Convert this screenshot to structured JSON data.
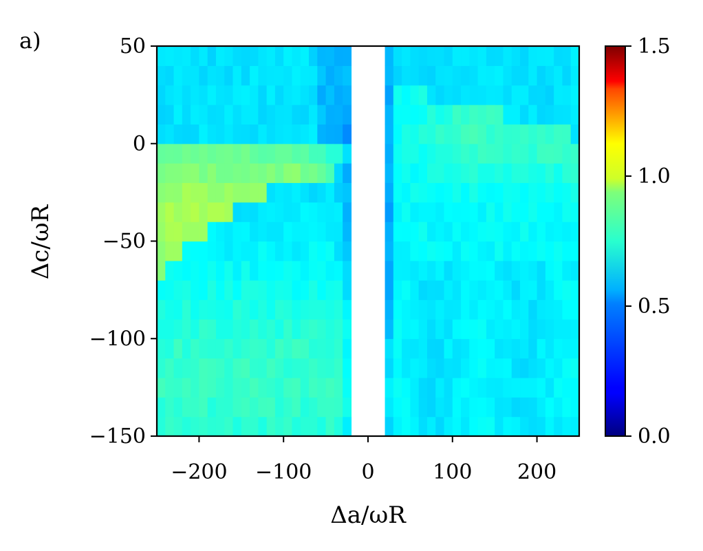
{
  "panel_label": "a)",
  "chart_data": {
    "type": "heatmap",
    "title": "",
    "xlabel": "Δa/ωR",
    "ylabel": "Δc/ωR",
    "xlim": [
      -250,
      250
    ],
    "ylim": [
      -150,
      50
    ],
    "xticks": [
      -200,
      -100,
      0,
      100,
      200
    ],
    "xtick_labels": [
      "−200",
      "−100",
      "0",
      "100",
      "200"
    ],
    "yticks": [
      -150,
      -100,
      -50,
      0,
      50
    ],
    "ytick_labels": [
      "−150",
      "−100",
      "−50",
      "0",
      "50"
    ],
    "colorbar": {
      "colormap": "jet",
      "range": [
        0.0,
        1.5
      ],
      "ticks": [
        0.0,
        0.5,
        1.0,
        1.5
      ],
      "tick_labels": [
        "0.0",
        "0.5",
        "1.0",
        "1.5"
      ]
    },
    "masked_x_range": [
      -20,
      20
    ],
    "grid": false,
    "grid_x_step": 10,
    "grid_y_step": 10,
    "region_values": [
      {
        "region": "Δc > 0, Δa < -20",
        "value": 0.52
      },
      {
        "region": "-40 < Δc < 0, far red detuning",
        "value": 0.78
      },
      {
        "region": "Δc ≈ -100 to -150, Δa < -50",
        "value": 0.62
      },
      {
        "region": "Δc > 30, Δa > 20",
        "value": 0.52
      },
      {
        "region": "0 < Δc < 20, Δa ≈ 200",
        "value": 0.68
      },
      {
        "region": "Δc < -50, Δa > 20",
        "value": 0.55
      }
    ]
  }
}
